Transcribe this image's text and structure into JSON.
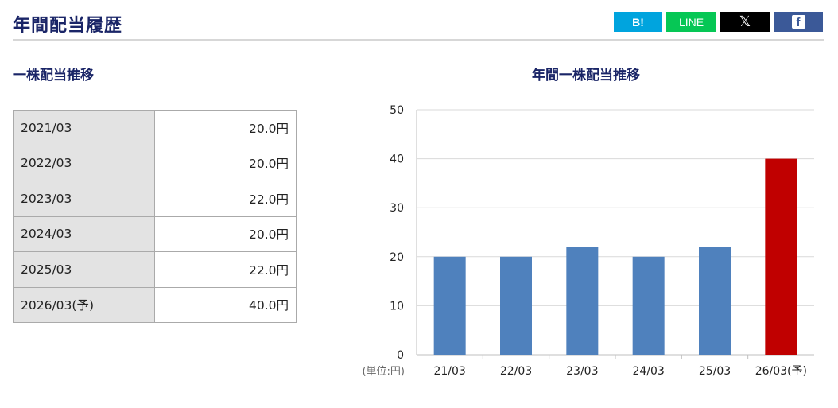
{
  "header": {
    "title": "年間配当履歴",
    "share": {
      "hatena": "B!",
      "line": "LINE",
      "x": "𝕏",
      "facebook": "f"
    }
  },
  "table_section": {
    "title": "一株配当推移",
    "rows": [
      {
        "period": "2021/03",
        "amount": "20.0円"
      },
      {
        "period": "2022/03",
        "amount": "20.0円"
      },
      {
        "period": "2023/03",
        "amount": "22.0円"
      },
      {
        "period": "2024/03",
        "amount": "20.0円"
      },
      {
        "period": "2025/03",
        "amount": "22.0円"
      },
      {
        "period": "2026/03(予)",
        "amount": "40.0円"
      }
    ]
  },
  "chart_data": {
    "type": "bar",
    "title": "年間一株配当推移",
    "unit_label": "(単位:円)",
    "categories": [
      "21/03",
      "22/03",
      "23/03",
      "24/03",
      "25/03",
      "26/03(予)"
    ],
    "values": [
      20,
      20,
      22,
      20,
      22,
      40
    ],
    "ylim": [
      0,
      50
    ],
    "yticks": [
      0,
      10,
      20,
      30,
      40,
      50
    ],
    "grid": true,
    "colors": {
      "actual": "#4f81bd",
      "forecast": "#c00000"
    },
    "forecast_index": 5
  }
}
